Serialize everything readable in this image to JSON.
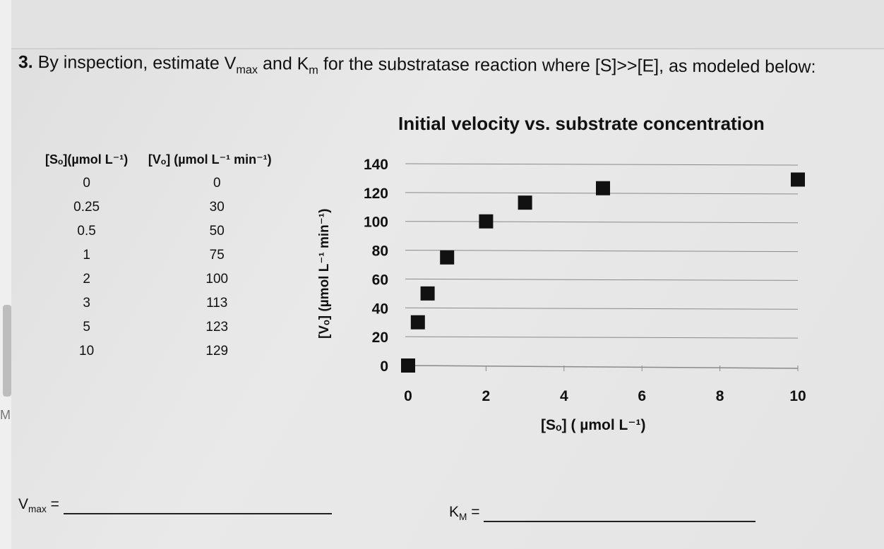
{
  "question": {
    "number": "3.",
    "text_before_vmax": " By inspection, estimate V",
    "vmax_sub": "max",
    "text_and": " and K",
    "km_sub": "m",
    "text_after": " for the substratase reaction where [S]>>[E], as modeled below:"
  },
  "left_strip": {
    "fragment": "M("
  },
  "table": {
    "header_s": "[Sₒ](µmol L⁻¹)",
    "header_v": "[Vₒ] (µmol L⁻¹ min⁻¹)",
    "rows": [
      [
        "0",
        "0"
      ],
      [
        "0.25",
        "30"
      ],
      [
        "0.5",
        "50"
      ],
      [
        "1",
        "75"
      ],
      [
        "2",
        "100"
      ],
      [
        "3",
        "113"
      ],
      [
        "5",
        "123"
      ],
      [
        "10",
        "129"
      ]
    ]
  },
  "chart_data": {
    "type": "scatter",
    "title": "Initial velocity vs. substrate concentration",
    "xlabel": "[Sₒ] ( µmol L⁻¹)",
    "ylabel": "[Vₒ] (µmol L⁻¹ min⁻¹)",
    "xlim": [
      0,
      10
    ],
    "ylim": [
      0,
      140
    ],
    "x_ticks": [
      "0",
      "2",
      "4",
      "6",
      "8",
      "10"
    ],
    "y_ticks": [
      "0",
      "20",
      "40",
      "60",
      "80",
      "100",
      "120",
      "140"
    ],
    "grid": "horizontal",
    "marker": "square",
    "color": "#111111",
    "series": [
      {
        "x": [
          0,
          0.25,
          0.5,
          1,
          2,
          3,
          5,
          10
        ],
        "y": [
          0,
          30,
          50,
          75,
          100,
          113,
          123,
          129
        ]
      }
    ]
  },
  "answers": {
    "vmax_label": "V",
    "vmax_sub": "max",
    "vmax_eq": " =",
    "km_label": "K",
    "km_sub": "M",
    "km_eq": " ="
  }
}
